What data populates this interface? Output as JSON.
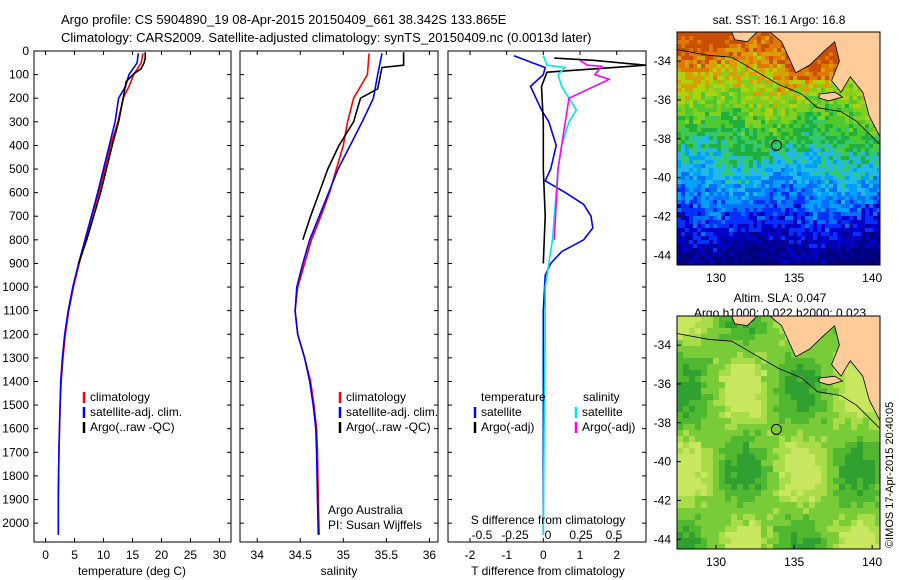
{
  "header": {
    "line1": "Argo profile: CS 5904890_19 08-Apr-2015 20150409_661 38.342S 133.865E",
    "line2": "Climatology: CARS2009. Satellite-adjusted climatology: synTS_20150409.nc (0.0013d later)"
  },
  "colors": {
    "climatology": "#ff0000",
    "satellite": "#0000ff",
    "argo": "#000000",
    "salinity_satellite": "#00e5e5",
    "salinity_argo": "#ff00ff",
    "land": "#ffcc99"
  },
  "depth_ticks": [
    0,
    100,
    200,
    300,
    400,
    500,
    600,
    700,
    800,
    900,
    1000,
    1100,
    1200,
    1300,
    1400,
    1500,
    1600,
    1700,
    1800,
    1900,
    2000
  ],
  "chart_data": [
    {
      "type": "line",
      "id": "temperature",
      "xlabel": "temperature (deg C)",
      "xlim": [
        -2,
        32
      ],
      "ylim": [
        2080,
        0
      ],
      "xticks": [
        0,
        5,
        10,
        15,
        20,
        25,
        30
      ],
      "legend": [
        "climatology",
        "satellite-adj. clim.",
        "Argo(..raw -QC)"
      ],
      "series": [
        {
          "name": "climatology",
          "color": "#ff0000",
          "x": [
            16.8,
            16.5,
            15.2,
            14.4,
            13.4,
            12.5,
            11.2,
            10.2,
            9.2,
            8.0,
            6.9,
            5.8,
            4.8,
            4.0,
            3.4,
            3.0,
            2.7,
            2.5,
            2.4,
            2.3,
            2.2,
            2.2
          ],
          "y": [
            10,
            50,
            100,
            150,
            200,
            300,
            400,
            500,
            600,
            700,
            800,
            900,
            1000,
            1100,
            1200,
            1300,
            1400,
            1500,
            1600,
            1700,
            1900,
            2050
          ]
        },
        {
          "name": "satellite-adj. clim.",
          "color": "#0000ff",
          "x": [
            16.0,
            15.8,
            14.4,
            13.8,
            12.6,
            12.0,
            11.0,
            10.0,
            9.0,
            7.9,
            6.8,
            5.7,
            4.7,
            3.9,
            3.3,
            2.9,
            2.6,
            2.5,
            2.4,
            2.3,
            2.2,
            2.2
          ],
          "y": [
            10,
            50,
            100,
            150,
            200,
            300,
            400,
            500,
            600,
            700,
            800,
            900,
            1000,
            1100,
            1200,
            1300,
            1400,
            1500,
            1600,
            1700,
            1900,
            2050
          ]
        },
        {
          "name": "Argo(..raw -QC)",
          "color": "#000000",
          "x": [
            17.2,
            17.2,
            17.0,
            16.5,
            15.3,
            13.9,
            13.4,
            12.6,
            11.5,
            10.5,
            9.5,
            8.3,
            7.1,
            5.7
          ],
          "y": [
            5,
            30,
            50,
            75,
            95,
            130,
            200,
            300,
            400,
            500,
            600,
            700,
            800,
            900
          ]
        }
      ]
    },
    {
      "type": "line",
      "id": "salinity",
      "xlabel": "salinity",
      "xlim": [
        33.8,
        36.1
      ],
      "ylim": [
        2080,
        0
      ],
      "xticks": [
        34,
        34.5,
        35,
        35.5,
        36
      ],
      "legend": [
        "climatology",
        "satellite-adj. clim.",
        "Argo(..raw -QC)"
      ],
      "annotation": [
        "Argo Australia",
        "PI: Susan Wijffels"
      ],
      "series": [
        {
          "name": "climatology",
          "color": "#ff0000",
          "x": [
            35.3,
            35.28,
            35.12,
            35.05,
            35.0,
            34.92,
            34.84,
            34.74,
            34.63,
            34.55,
            34.47,
            34.44,
            34.47,
            34.55,
            34.62,
            34.66,
            34.69,
            34.7,
            34.71,
            34.72
          ],
          "y": [
            10,
            100,
            200,
            300,
            400,
            500,
            600,
            700,
            800,
            900,
            1000,
            1100,
            1200,
            1300,
            1400,
            1500,
            1600,
            1700,
            1900,
            2050
          ]
        },
        {
          "name": "satellite-adj. clim.",
          "color": "#0000ff",
          "x": [
            35.45,
            35.4,
            35.35,
            35.22,
            35.08,
            34.94,
            34.83,
            34.72,
            34.61,
            34.53,
            34.46,
            34.44,
            34.47,
            34.55,
            34.61,
            34.65,
            34.68,
            34.69,
            34.7,
            34.71
          ],
          "y": [
            10,
            100,
            200,
            300,
            400,
            500,
            600,
            700,
            800,
            900,
            1000,
            1100,
            1200,
            1300,
            1400,
            1500,
            1600,
            1700,
            1900,
            2050
          ]
        },
        {
          "name": "Argo(..raw -QC)",
          "color": "#000000",
          "x": [
            35.7,
            35.7,
            35.45,
            35.4,
            35.2,
            35.12,
            34.95,
            34.82,
            34.72,
            34.62,
            34.53
          ],
          "y": [
            5,
            60,
            70,
            160,
            200,
            300,
            400,
            500,
            600,
            700,
            800
          ]
        }
      ]
    },
    {
      "type": "line",
      "id": "difference",
      "xlabel": "T difference from climatology",
      "xlabel_top": "S difference from climatology",
      "xlim": [
        -2.6,
        2.8
      ],
      "ylim": [
        2080,
        0
      ],
      "xticks": [
        -2,
        -1,
        0,
        1,
        2
      ],
      "sticks": [
        -0.5,
        -0.25,
        0,
        0.25,
        0.5
      ],
      "legend_headers": [
        "temperature",
        "salinity"
      ],
      "legend": [
        "satellite",
        "Argo(-adj)",
        "satellite",
        "Argo(-adj)"
      ],
      "series": [
        {
          "name": "temperature satellite",
          "color": "#0000ff",
          "x": [
            -0.8,
            -0.3,
            0.05,
            0.0,
            -0.35,
            -0.2,
            -0.05,
            0.15,
            0.35,
            0.2,
            0.05,
            0.6,
            1.1,
            1.3,
            1.35,
            1.1,
            0.5,
            0.2,
            0.05,
            0.0,
            0.0,
            0.0
          ],
          "y": [
            20,
            50,
            70,
            100,
            150,
            200,
            250,
            300,
            400,
            500,
            550,
            600,
            650,
            700,
            750,
            800,
            850,
            900,
            950,
            1100,
            1500,
            2050
          ]
        },
        {
          "name": "temperature Argo(-adj)",
          "color": "#000000",
          "x": [
            0.3,
            1.4,
            2.8,
            0.1,
            -0.05,
            0.0,
            0.0,
            0.05,
            0.0
          ],
          "y": [
            30,
            40,
            60,
            90,
            150,
            300,
            500,
            700,
            900
          ]
        },
        {
          "name": "salinity satellite",
          "color": "#00e5e5",
          "x": [
            0.0,
            0.1,
            0.6,
            0.4,
            0.5,
            0.9,
            0.7,
            0.5,
            0.4,
            0.35,
            0.3,
            0.25,
            0.15,
            0.05,
            0.05,
            0.02,
            0.0
          ],
          "y": [
            20,
            60,
            70,
            100,
            150,
            250,
            300,
            400,
            500,
            600,
            700,
            800,
            900,
            1000,
            1200,
            1600,
            2050
          ]
        },
        {
          "name": "salinity Argo(-adj)",
          "color": "#ff00ff",
          "x": [
            1.0,
            1.2,
            1.6,
            1.4,
            1.8,
            0.7,
            0.6,
            0.4,
            0.3
          ],
          "y": [
            40,
            60,
            65,
            100,
            120,
            200,
            300,
            500,
            800
          ]
        }
      ]
    },
    {
      "type": "heatmap",
      "id": "sst-map",
      "title": "sat. SST: 16.1  Argo: 16.8",
      "xlim": [
        127.5,
        140.5
      ],
      "ylim": [
        -44.5,
        -32.5
      ],
      "xticks": [
        130,
        135,
        140
      ],
      "yticks": [
        -34,
        -36,
        -38,
        -40,
        -42,
        -44
      ],
      "profile_location": [
        133.865,
        -38.342
      ]
    },
    {
      "type": "heatmap",
      "id": "sla-map",
      "title_line1": "Altim. SLA: 0.047",
      "title_line2": "Argo h1000: 0.022 h2000: 0.023",
      "xlim": [
        127.5,
        140.5
      ],
      "ylim": [
        -44.5,
        -32.5
      ],
      "xticks": [
        130,
        135,
        140
      ],
      "yticks": [
        -34,
        -36,
        -38,
        -40,
        -42,
        -44
      ],
      "profile_location": [
        133.865,
        -38.342
      ]
    }
  ],
  "credit": "©IMOS 17-Apr-2015 20:40:05"
}
